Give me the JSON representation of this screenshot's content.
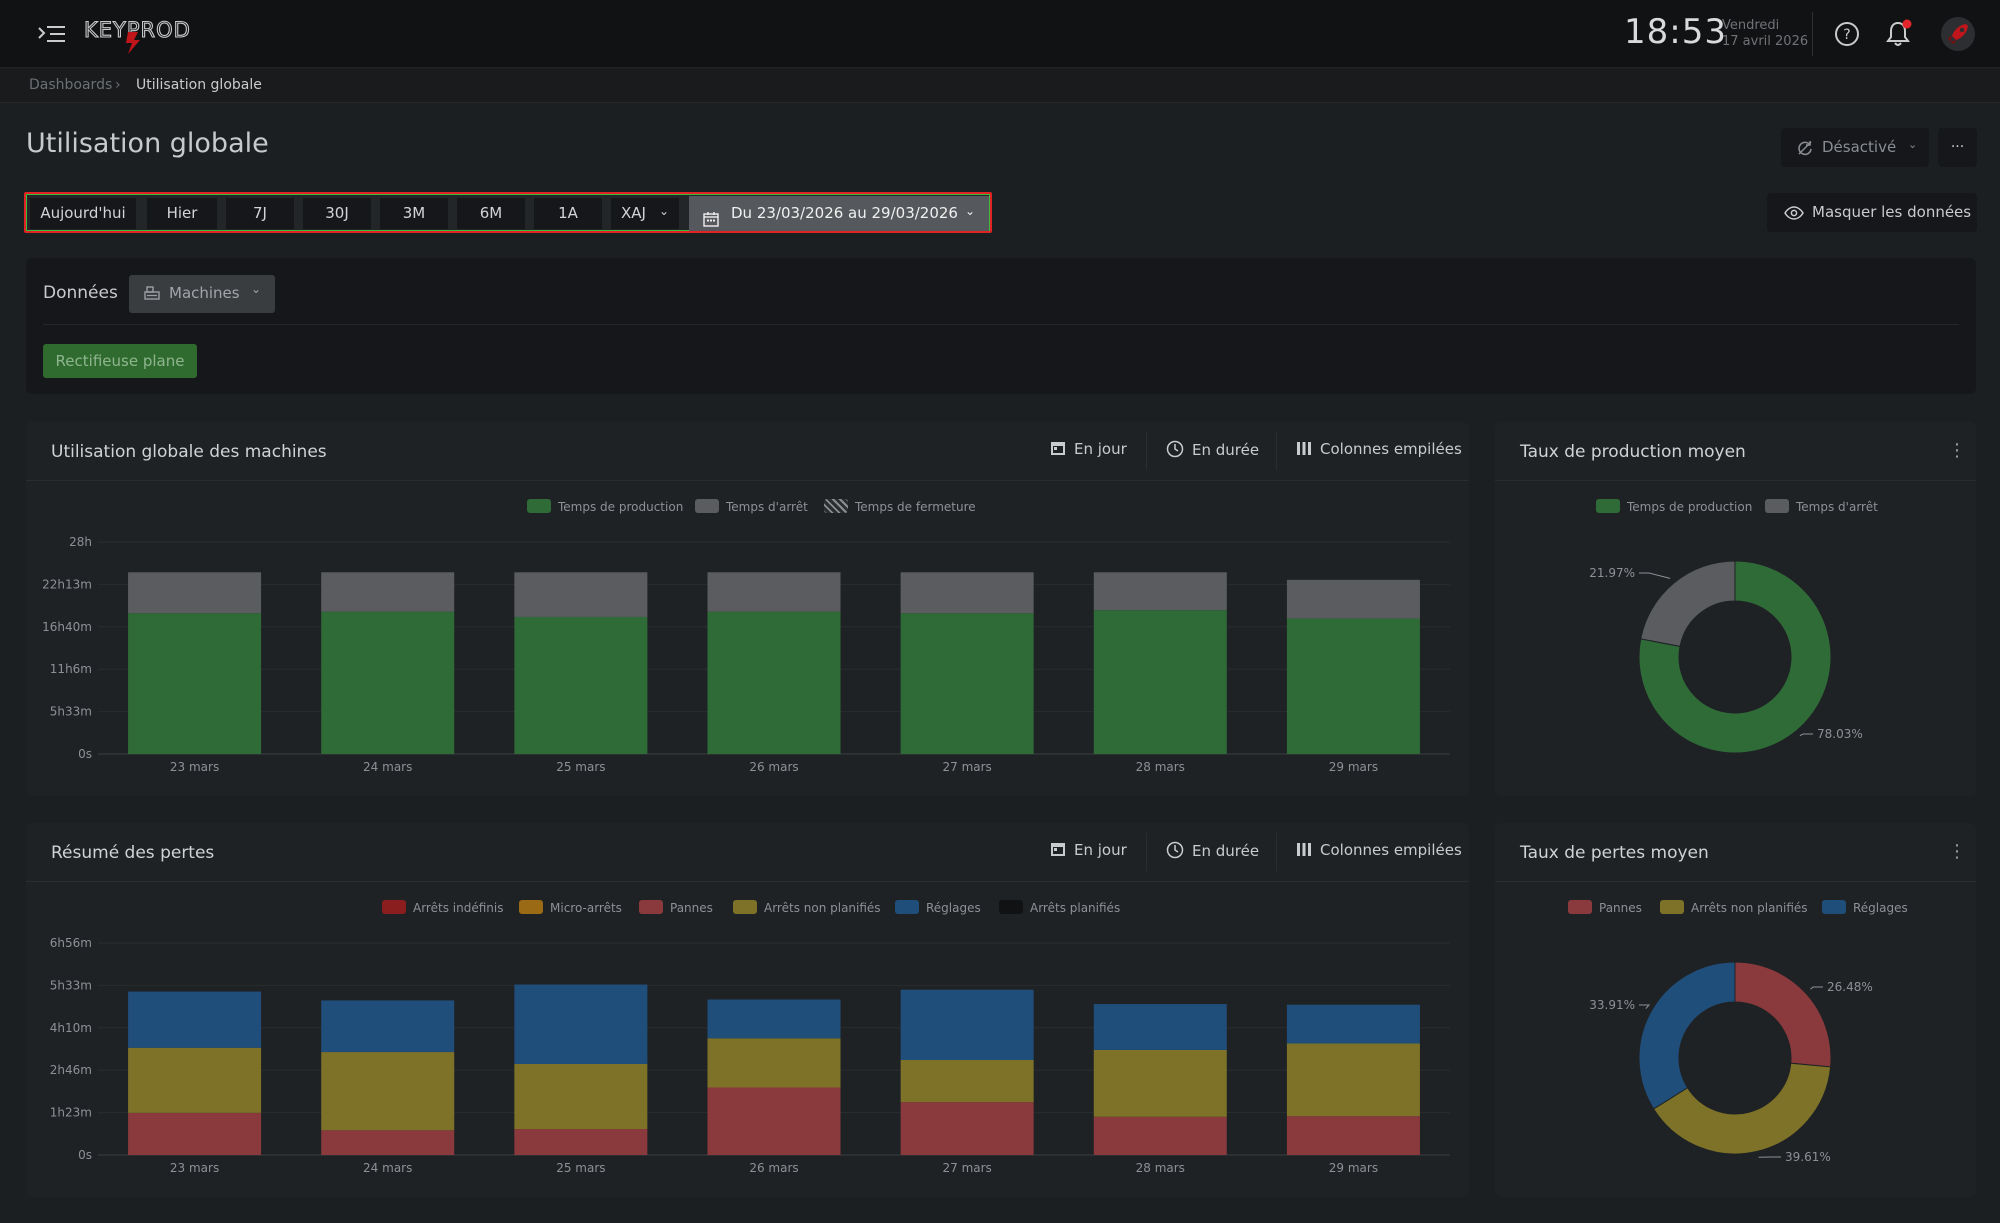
{
  "app": {
    "logo_text": "KEYPROD",
    "clock": "18:53",
    "day": "Vendredi",
    "date": "17 avril 2026",
    "icons": [
      "menu-toggle-icon",
      "help-icon",
      "bell-icon",
      "rocket-icon"
    ],
    "accent_red": "#e02424",
    "accent_green": "#2e6b36"
  },
  "breadcrumb": {
    "items": [
      "Dashboards",
      "Utilisation globale"
    ],
    "separator": "›"
  },
  "page": {
    "title": "Utilisation globale"
  },
  "refresh": {
    "label": "Désactivé"
  },
  "more_label": "···",
  "range": {
    "buttons": [
      "Aujourd'hui",
      "Hier",
      "7J",
      "30J",
      "3M",
      "6M",
      "1A",
      "XAJ"
    ],
    "date_label": "Du 23/03/2026 au 29/03/2026"
  },
  "hide_data": {
    "label": "Masquer les données"
  },
  "data_filter": {
    "label": "Données",
    "dropdown": "Machines",
    "tags": [
      "Rectifieuse plane"
    ]
  },
  "toolbar": {
    "per_day": "En jour",
    "duration": "En durée",
    "stacked": "Colonnes empilées"
  },
  "card_utilisation": {
    "title": "Utilisation globale des machines",
    "legend": [
      "Temps de production",
      "Temps d'arrêt",
      "Temps de fermeture"
    ]
  },
  "card_taux_prod": {
    "title": "Taux de production moyen",
    "legend": [
      "Temps de production",
      "Temps d'arrêt"
    ]
  },
  "card_pertes": {
    "title": "Résumé des pertes",
    "legend": [
      "Arrêts indéfinis",
      "Micro-arrêts",
      "Pannes",
      "Arrêts non planifiés",
      "Réglages",
      "Arrêts planifiés"
    ]
  },
  "card_taux_pertes": {
    "title": "Taux de pertes moyen",
    "legend": [
      "Pannes",
      "Arrêts non planifiés",
      "Réglages"
    ]
  },
  "chart_data": [
    {
      "type": "bar",
      "title": "Utilisation globale des machines",
      "stacked": true,
      "categories": [
        "23 mars",
        "24 mars",
        "25 mars",
        "26 mars",
        "27 mars",
        "28 mars",
        "29 mars"
      ],
      "y_ticks": [
        "0s",
        "5h33m",
        "11h6m",
        "16h40m",
        "22h13m",
        "28h"
      ],
      "ylim_hours": [
        0,
        28
      ],
      "series": [
        {
          "name": "Temps de production",
          "color": "#2f6b37",
          "values": [
            18.6,
            18.8,
            18.1,
            18.8,
            18.6,
            19.0,
            17.9
          ]
        },
        {
          "name": "Temps d'arrêt",
          "color": "#5a5c5f",
          "values": [
            5.4,
            5.2,
            5.9,
            5.2,
            5.4,
            5.0,
            5.1
          ]
        },
        {
          "name": "Temps de fermeture",
          "color": "#8a8d90",
          "values": [
            0,
            0,
            0,
            0,
            0,
            0,
            0
          ]
        }
      ],
      "legend_position": "top",
      "grid": true
    },
    {
      "type": "pie",
      "title": "Taux de production moyen",
      "donut": true,
      "slices": [
        {
          "name": "Temps de production",
          "value": 78.03,
          "label": "78.03%",
          "color": "#2f6b37"
        },
        {
          "name": "Temps d'arrêt",
          "value": 21.97,
          "label": "21.97%",
          "color": "#5a5c5f"
        }
      ]
    },
    {
      "type": "bar",
      "title": "Résumé des pertes",
      "stacked": true,
      "categories": [
        "23 mars",
        "24 mars",
        "25 mars",
        "26 mars",
        "27 mars",
        "28 mars",
        "29 mars"
      ],
      "y_ticks": [
        "0s",
        "1h23m",
        "2h46m",
        "4h10m",
        "5h33m",
        "6h56m"
      ],
      "ylim_hours": [
        0,
        6.94
      ],
      "series": [
        {
          "name": "Arrêts indéfinis",
          "color": "#8a1e1e",
          "values": [
            0,
            0,
            0,
            0,
            0,
            0,
            0
          ]
        },
        {
          "name": "Micro-arrêts",
          "color": "#9a6a14",
          "values": [
            0,
            0,
            0,
            0,
            0,
            0,
            0
          ]
        },
        {
          "name": "Pannes",
          "color": "#8a3a3d",
          "values": [
            1.38,
            0.81,
            0.85,
            2.21,
            1.73,
            1.25,
            1.27
          ]
        },
        {
          "name": "Arrêts non planifiés",
          "color": "#7d7228",
          "values": [
            2.13,
            2.56,
            2.13,
            1.61,
            1.38,
            2.19,
            2.38
          ]
        },
        {
          "name": "Réglages",
          "color": "#204e7a",
          "values": [
            1.84,
            1.69,
            2.6,
            1.27,
            2.3,
            1.5,
            1.27
          ]
        },
        {
          "name": "Arrêts planifiés",
          "color": "#111213",
          "values": [
            0,
            0,
            0,
            0,
            0,
            0,
            0
          ]
        }
      ],
      "legend_position": "top",
      "grid": true
    },
    {
      "type": "pie",
      "title": "Taux de pertes moyen",
      "donut": true,
      "slices": [
        {
          "name": "Pannes",
          "value": 26.48,
          "label": "26.48%",
          "color": "#8a3a3d"
        },
        {
          "name": "Arrêts non planifiés",
          "value": 39.61,
          "label": "39.61%",
          "color": "#7d7228"
        },
        {
          "name": "Réglages",
          "value": 33.91,
          "label": "33.91%",
          "color": "#204e7a"
        }
      ]
    }
  ]
}
